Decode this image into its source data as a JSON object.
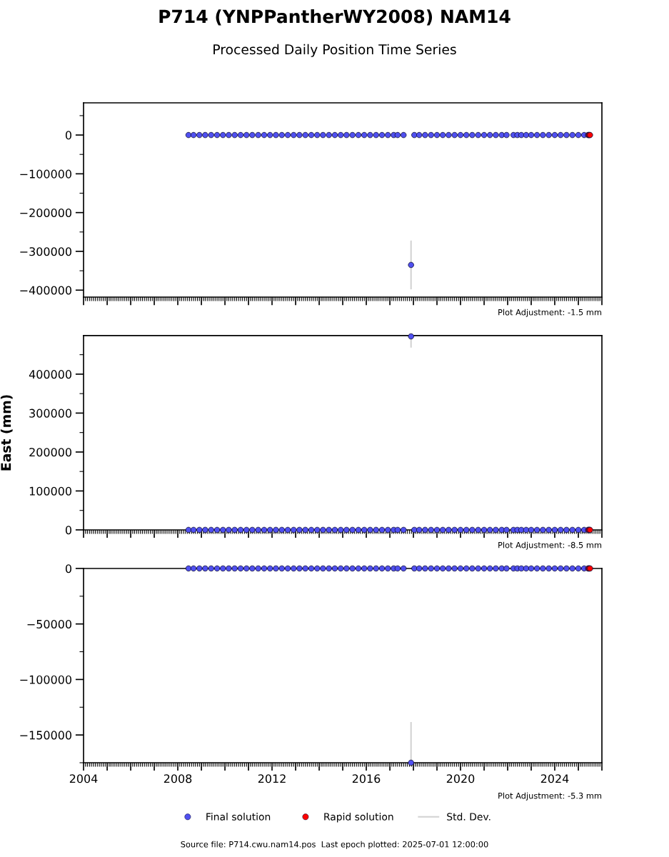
{
  "chart_data": [
    {
      "type": "scatter",
      "title": "P714 (YNPPantherWY2008) NAM14",
      "subtitle": "Processed Daily Position Time Series",
      "x": [
        "2008-06-15",
        "2008-09",
        "2008-12",
        "2009-03",
        "2009-06",
        "2009-09",
        "2009-12",
        "2010-03",
        "2010-06",
        "2010-09",
        "2010-12",
        "2011-03",
        "2011-06",
        "2011-09",
        "2011-12",
        "2012-03",
        "2012-06",
        "2012-09",
        "2012-12",
        "2013-03",
        "2013-06",
        "2013-09",
        "2013-12",
        "2014-03",
        "2014-06",
        "2014-09",
        "2014-12",
        "2015-03",
        "2015-06",
        "2015-09",
        "2015-12",
        "2016-03",
        "2016-06",
        "2016-09",
        "2016-12",
        "2017-03",
        "2017-05",
        "2017-08",
        "2017-11-25",
        "2018-01-15",
        "2018-04",
        "2018-07",
        "2018-10",
        "2019-01",
        "2019-04",
        "2019-07",
        "2019-10",
        "2020-01",
        "2020-04",
        "2020-07",
        "2020-10",
        "2021-01",
        "2021-04",
        "2021-07",
        "2021-10",
        "2021-12-15",
        "2022-04",
        "2022-06",
        "2022-08",
        "2022-10-15",
        "2023-01",
        "2023-04",
        "2023-07",
        "2023-10",
        "2024-01",
        "2024-04",
        "2024-07",
        "2024-10",
        "2025-01",
        "2025-04",
        "2025-06-01"
      ],
      "series": [
        {
          "name": "Final solution",
          "color": "#5050f0",
          "values": [
            0,
            0,
            0,
            0,
            0,
            0,
            0,
            0,
            0,
            0,
            0,
            0,
            0,
            0,
            0,
            0,
            0,
            0,
            0,
            0,
            0,
            0,
            0,
            0,
            0,
            0,
            0,
            0,
            0,
            0,
            0,
            0,
            0,
            0,
            0,
            0,
            0,
            0,
            -335000,
            0,
            0,
            0,
            0,
            0,
            0,
            0,
            0,
            0,
            0,
            0,
            0,
            0,
            0,
            0,
            0,
            0,
            0,
            0,
            0,
            0,
            0,
            0,
            0,
            0,
            0,
            0,
            0,
            0,
            0,
            0,
            0
          ]
        },
        {
          "name": "Rapid solution",
          "color": "#ff0000",
          "x": [
            "2025-06-10",
            "2025-06-20",
            "2025-07-01"
          ],
          "values": [
            0,
            0,
            0
          ]
        },
        {
          "name": "Std. Dev.",
          "type": "line",
          "marker": "none",
          "color": "#d3d3d3",
          "x": [
            "2017-11-25",
            "2017-11-25"
          ],
          "values": [
            -274000,
            -396000
          ]
        }
      ],
      "xlim": [
        "2004",
        "2026"
      ],
      "xticks": [
        "2004",
        {
          "value": "2005",
          "label": null
        },
        {
          "value": "2006",
          "label": null
        },
        {
          "value": "2007",
          "label": null
        },
        "2008",
        {
          "value": "2009",
          "label": null
        },
        {
          "value": "2010",
          "label": null
        },
        {
          "value": "2011",
          "label": null
        },
        "2012",
        {
          "value": "2013",
          "label": null
        },
        {
          "value": "2014",
          "label": null
        },
        {
          "value": "2015",
          "label": null
        },
        "2016",
        {
          "value": "2017",
          "label": null
        },
        {
          "value": "2018",
          "label": null
        },
        {
          "value": "2019",
          "label": null
        },
        "2020",
        {
          "value": "2021",
          "label": null
        },
        {
          "value": "2022",
          "label": null
        },
        {
          "value": "2023",
          "label": null
        },
        "2024",
        {
          "value": "2025",
          "label": null
        },
        {
          "value": "2026",
          "label": null
        }
      ],
      "ylim": [
        -418000,
        83000
      ],
      "yticks": [
        -400000,
        -300000,
        -200000,
        -100000,
        0
      ],
      "marker": "circle",
      "grid": false,
      "tick_labels": "y",
      "legend": "bottom",
      "annotations": [
        "Plot Adjustment: -1.5 mm"
      ]
    },
    {
      "type": "scatter",
      "ylabel": "East (mm)",
      "x": [
        "2008-06-15",
        "2008-09",
        "2008-12",
        "2009-03",
        "2009-06",
        "2009-09",
        "2009-12",
        "2010-03",
        "2010-06",
        "2010-09",
        "2010-12",
        "2011-03",
        "2011-06",
        "2011-09",
        "2011-12",
        "2012-03",
        "2012-06",
        "2012-09",
        "2012-12",
        "2013-03",
        "2013-06",
        "2013-09",
        "2013-12",
        "2014-03",
        "2014-06",
        "2014-09",
        "2014-12",
        "2015-03",
        "2015-06",
        "2015-09",
        "2015-12",
        "2016-03",
        "2016-06",
        "2016-09",
        "2016-12",
        "2017-03",
        "2017-05",
        "2017-08",
        "2017-11-25",
        "2018-01-15",
        "2018-04",
        "2018-07",
        "2018-10",
        "2019-01",
        "2019-04",
        "2019-07",
        "2019-10",
        "2020-01",
        "2020-04",
        "2020-07",
        "2020-10",
        "2021-01",
        "2021-04",
        "2021-07",
        "2021-10",
        "2021-12-15",
        "2022-04",
        "2022-06",
        "2022-08",
        "2022-10-15",
        "2023-01",
        "2023-04",
        "2023-07",
        "2023-10",
        "2024-01",
        "2024-04",
        "2024-07",
        "2024-10",
        "2025-01",
        "2025-04",
        "2025-06-01"
      ],
      "series": [
        {
          "name": "Final solution",
          "color": "#5050f0",
          "values": [
            0,
            0,
            0,
            0,
            0,
            0,
            0,
            0,
            0,
            0,
            0,
            0,
            0,
            0,
            0,
            0,
            0,
            0,
            0,
            0,
            0,
            0,
            0,
            0,
            0,
            0,
            0,
            0,
            0,
            0,
            0,
            0,
            0,
            0,
            0,
            0,
            0,
            0,
            497000,
            0,
            0,
            0,
            0,
            0,
            0,
            0,
            0,
            0,
            0,
            0,
            0,
            0,
            0,
            0,
            0,
            0,
            0,
            0,
            0,
            0,
            0,
            0,
            0,
            0,
            0,
            0,
            0,
            0,
            0,
            0,
            0
          ]
        },
        {
          "name": "Rapid solution",
          "color": "#ff0000",
          "x": [
            "2025-06-10",
            "2025-06-20",
            "2025-07-01"
          ],
          "values": [
            0,
            0,
            0
          ]
        },
        {
          "name": "Std. Dev.",
          "type": "line",
          "marker": "none",
          "color": "#d3d3d3",
          "x": [
            "2017-11-25",
            "2017-11-25"
          ],
          "values": [
            470000,
            499000
          ]
        }
      ],
      "xlim": [
        "2004",
        "2026"
      ],
      "xticks": [
        "2004",
        {
          "value": "2005",
          "label": null
        },
        {
          "value": "2006",
          "label": null
        },
        {
          "value": "2007",
          "label": null
        },
        "2008",
        {
          "value": "2009",
          "label": null
        },
        {
          "value": "2010",
          "label": null
        },
        {
          "value": "2011",
          "label": null
        },
        "2012",
        {
          "value": "2013",
          "label": null
        },
        {
          "value": "2014",
          "label": null
        },
        {
          "value": "2015",
          "label": null
        },
        "2016",
        {
          "value": "2017",
          "label": null
        },
        {
          "value": "2018",
          "label": null
        },
        {
          "value": "2019",
          "label": null
        },
        "2020",
        {
          "value": "2021",
          "label": null
        },
        {
          "value": "2022",
          "label": null
        },
        {
          "value": "2023",
          "label": null
        },
        "2024",
        {
          "value": "2025",
          "label": null
        },
        {
          "value": "2026",
          "label": null
        }
      ],
      "ylim": [
        0,
        499000
      ],
      "yticks": [
        0,
        100000,
        200000,
        300000,
        400000
      ],
      "marker": "circle",
      "grid": false,
      "tick_labels": "y",
      "legend": "bottom",
      "annotations": [
        "Plot Adjustment: -8.5 mm"
      ]
    },
    {
      "type": "scatter",
      "x": [
        "2008-06-15",
        "2008-09",
        "2008-12",
        "2009-03",
        "2009-06",
        "2009-09",
        "2009-12",
        "2010-03",
        "2010-06",
        "2010-09",
        "2010-12",
        "2011-03",
        "2011-06",
        "2011-09",
        "2011-12",
        "2012-03",
        "2012-06",
        "2012-09",
        "2012-12",
        "2013-03",
        "2013-06",
        "2013-09",
        "2013-12",
        "2014-03",
        "2014-06",
        "2014-09",
        "2014-12",
        "2015-03",
        "2015-06",
        "2015-09",
        "2015-12",
        "2016-03",
        "2016-06",
        "2016-09",
        "2016-12",
        "2017-03",
        "2017-05",
        "2017-08",
        "2017-11-25",
        "2018-01-15",
        "2018-04",
        "2018-07",
        "2018-10",
        "2019-01",
        "2019-04",
        "2019-07",
        "2019-10",
        "2020-01",
        "2020-04",
        "2020-07",
        "2020-10",
        "2021-01",
        "2021-04",
        "2021-07",
        "2021-10",
        "2021-12-15",
        "2022-04",
        "2022-06",
        "2022-08",
        "2022-10-15",
        "2023-01",
        "2023-04",
        "2023-07",
        "2023-10",
        "2024-01",
        "2024-04",
        "2024-07",
        "2024-10",
        "2025-01",
        "2025-04",
        "2025-06-01"
      ],
      "series": [
        {
          "name": "Final solution",
          "color": "#5050f0",
          "values": [
            0,
            0,
            0,
            0,
            0,
            0,
            0,
            0,
            0,
            0,
            0,
            0,
            0,
            0,
            0,
            0,
            0,
            0,
            0,
            0,
            0,
            0,
            0,
            0,
            0,
            0,
            0,
            0,
            0,
            0,
            0,
            0,
            0,
            0,
            0,
            0,
            0,
            0,
            -175000,
            0,
            0,
            0,
            0,
            0,
            0,
            0,
            0,
            0,
            0,
            0,
            0,
            0,
            0,
            0,
            0,
            0,
            0,
            0,
            0,
            0,
            0,
            0,
            0,
            0,
            0,
            0,
            0,
            0,
            0,
            0,
            0
          ]
        },
        {
          "name": "Rapid solution",
          "color": "#ff0000",
          "x": [
            "2025-06-10",
            "2025-06-20",
            "2025-07-01"
          ],
          "values": [
            0,
            0,
            0
          ]
        },
        {
          "name": "Std. Dev.",
          "type": "line",
          "marker": "none",
          "color": "#d3d3d3",
          "x": [
            "2017-11-25",
            "2017-11-25"
          ],
          "values": [
            -139000,
            -175000
          ]
        }
      ],
      "xlim": [
        "2004",
        "2026"
      ],
      "xticks": [
        "2004",
        {
          "value": "2005",
          "label": null
        },
        {
          "value": "2006",
          "label": null
        },
        {
          "value": "2007",
          "label": null
        },
        "2008",
        {
          "value": "2009",
          "label": null
        },
        {
          "value": "2010",
          "label": null
        },
        {
          "value": "2011",
          "label": null
        },
        "2012",
        {
          "value": "2013",
          "label": null
        },
        {
          "value": "2014",
          "label": null
        },
        {
          "value": "2015",
          "label": null
        },
        "2016",
        {
          "value": "2017",
          "label": null
        },
        {
          "value": "2018",
          "label": null
        },
        {
          "value": "2019",
          "label": null
        },
        "2020",
        {
          "value": "2021",
          "label": null
        },
        {
          "value": "2022",
          "label": null
        },
        {
          "value": "2023",
          "label": null
        },
        "2024",
        {
          "value": "2025",
          "label": null
        },
        {
          "value": "2026",
          "label": null
        }
      ],
      "ylim": [
        -175000,
        0
      ],
      "yticks": [
        -150000,
        -100000,
        -50000,
        0
      ],
      "marker": "circle",
      "grid": false,
      "legend": "bottom",
      "annotations": [
        "Plot Adjustment: -5.3 mm",
        "Source file: P714.cwu.nam14.pos  Last epoch plotted: 2025-07-01 12:00:00"
      ]
    }
  ]
}
